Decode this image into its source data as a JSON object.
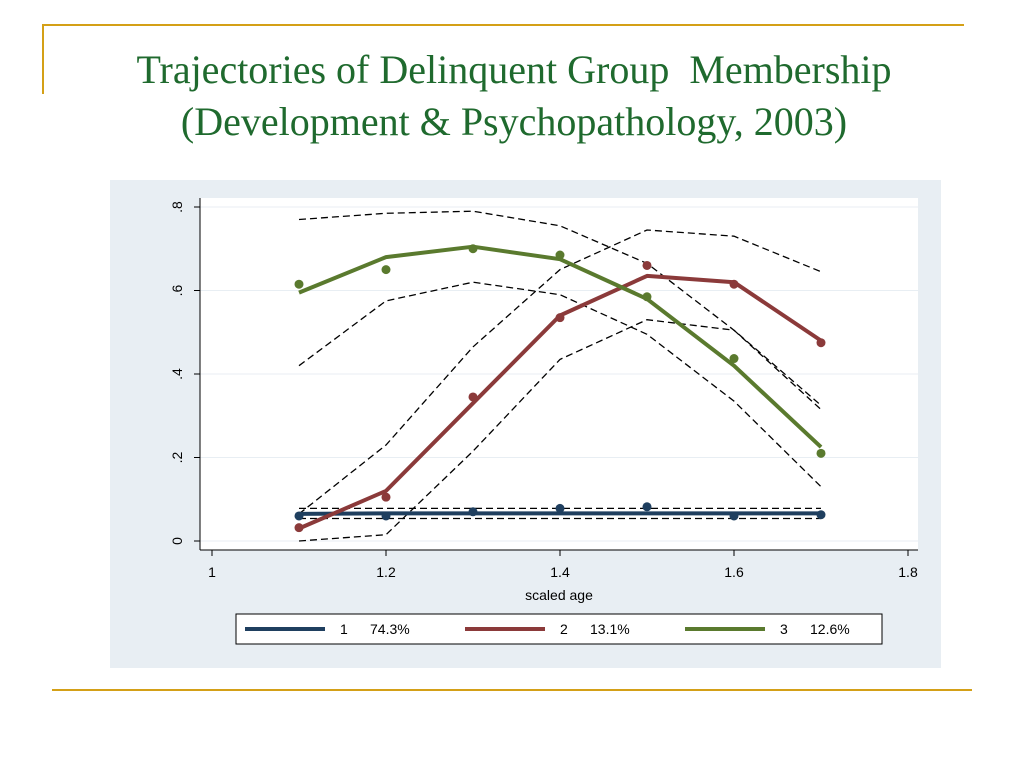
{
  "slide": {
    "title_line1": "Trajectories of Delinquent Group  Membership",
    "title_line2": "(Development & Psychopathology, 2003)",
    "accent_color": "#d4a017",
    "title_color": "#1f6a2e"
  },
  "chart_data": {
    "type": "line",
    "title": "",
    "xlabel": "scaled age",
    "ylabel": "",
    "xlim": [
      1,
      1.8
    ],
    "ylim": [
      0,
      0.8
    ],
    "x_ticks": [
      1,
      1.2,
      1.4,
      1.6,
      1.8
    ],
    "x_tick_labels": [
      "1",
      "1.2",
      "1.4",
      "1.6",
      "1.8"
    ],
    "y_ticks": [
      0,
      0.2,
      0.4,
      0.6,
      0.8
    ],
    "y_tick_labels": [
      "0",
      ".2",
      ".4",
      ".6",
      ".8"
    ],
    "grid": true,
    "legend_position": "bottom",
    "series": [
      {
        "label": "1",
        "percent": "74.3%",
        "color": "#1f3f5f",
        "x": [
          1.1,
          1.2,
          1.3,
          1.4,
          1.5,
          1.6,
          1.7
        ],
        "predicted": [
          0.065,
          0.066,
          0.066,
          0.066,
          0.066,
          0.066,
          0.066
        ],
        "observed": [
          0.06,
          0.06,
          0.07,
          0.078,
          0.082,
          0.06,
          0.063
        ],
        "ci_upper": [
          0.078,
          0.078,
          0.078,
          0.078,
          0.078,
          0.078,
          0.078
        ],
        "ci_lower": [
          0.054,
          0.054,
          0.054,
          0.054,
          0.054,
          0.054,
          0.054
        ]
      },
      {
        "label": "2",
        "percent": "13.1%",
        "color": "#8b3a3a",
        "x": [
          1.1,
          1.2,
          1.3,
          1.4,
          1.5,
          1.6,
          1.7
        ],
        "predicted": [
          0.03,
          0.12,
          0.33,
          0.54,
          0.635,
          0.62,
          0.48
        ],
        "observed": [
          0.032,
          0.105,
          0.345,
          0.535,
          0.66,
          0.615,
          0.475
        ],
        "ci_upper": [
          0.065,
          0.23,
          0.465,
          0.65,
          0.745,
          0.73,
          0.645
        ],
        "ci_lower": [
          0.0,
          0.015,
          0.215,
          0.435,
          0.53,
          0.505,
          0.315
        ]
      },
      {
        "label": "3",
        "percent": "12.6%",
        "color": "#5a7a2e",
        "x": [
          1.1,
          1.2,
          1.3,
          1.4,
          1.5,
          1.6,
          1.7
        ],
        "predicted": [
          0.595,
          0.68,
          0.705,
          0.675,
          0.58,
          0.42,
          0.225
        ],
        "observed": [
          0.615,
          0.65,
          0.7,
          0.685,
          0.585,
          0.437,
          0.21
        ],
        "ci_upper": [
          0.77,
          0.785,
          0.79,
          0.755,
          0.665,
          0.505,
          0.325
        ],
        "ci_lower": [
          0.42,
          0.575,
          0.62,
          0.59,
          0.495,
          0.335,
          0.13
        ]
      }
    ]
  }
}
